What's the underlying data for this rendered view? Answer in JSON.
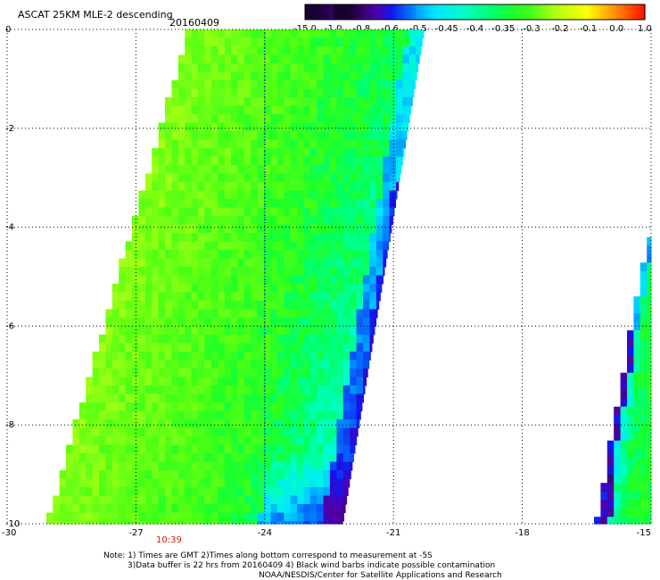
{
  "title": "ASCAT 25KM MLE-2 descending",
  "date": "20160409",
  "time_label": "10:39",
  "colorbar": {
    "labels": [
      "-15.0",
      "-1.0",
      "-0.8",
      "-0.6",
      "-0.5",
      "-0.45",
      "-0.4",
      "-0.35",
      "-0.3",
      "-0.2",
      "-0.1",
      "0.0",
      "1.0"
    ],
    "colors": [
      "#2a0030",
      "#5a00a0",
      "#1010e0",
      "#0070ff",
      "#00c0ff",
      "#00ffe0",
      "#00ff80",
      "#20ff20",
      "#70ff10",
      "#c0ff00",
      "#ffff00",
      "#ff9000",
      "#ff1000"
    ]
  },
  "notes": [
    "Note: 1) Times are GMT 2)Times along bottom correspond to measurement at -5S",
    "3)Data buffer is 22 hrs from 20160409 4) Black wind barbs indicate possible contamination",
    "NOAA/NESDIS/Center for Satellite Applications and Research"
  ],
  "chart_data": {
    "type": "heatmap",
    "title": "ASCAT 25KM MLE-2 descending",
    "date": "20160409",
    "xlim": [
      -30,
      -15
    ],
    "ylim": [
      -10,
      0
    ],
    "x_ticks": [
      -30,
      -27,
      -24,
      -21,
      -18,
      -15
    ],
    "x_tick_labels": [
      "-30",
      "-27",
      "-24",
      "-21",
      "-18",
      "-15"
    ],
    "y_ticks": [
      0,
      -2,
      -4,
      -6,
      -8,
      -10
    ],
    "y_tick_labels": [
      "0",
      "-2",
      "-4",
      "-6",
      "-8",
      "-10"
    ],
    "grid": true,
    "colorbar_labels": [
      "-15.0",
      "-1.0",
      "-0.8",
      "-0.6",
      "-0.5",
      "-0.45",
      "-0.4",
      "-0.35",
      "-0.3",
      "-0.2",
      "-0.1",
      "0.0",
      "1.0"
    ],
    "swaths": [
      {
        "name": "main",
        "top_lat": 0,
        "bottom_lat": -10,
        "top_left_lon": -25.8,
        "top_right_lon": -20.3,
        "bottom_left_lon": -29.1,
        "bottom_right_lon": -22.2,
        "west_value": -0.25,
        "mid_value": -0.32,
        "east_value": -0.42,
        "edge_value": -0.55
      },
      {
        "name": "east",
        "top_lat": -4.2,
        "bottom_lat": -10,
        "top_left_lon": -15.1,
        "top_right_lon": -15,
        "bottom_left_lon": -16.3,
        "bottom_right_lon": -15,
        "west_value": -0.5,
        "mid_value": -0.35,
        "east_value": -0.32,
        "edge_value": -0.6
      }
    ]
  }
}
